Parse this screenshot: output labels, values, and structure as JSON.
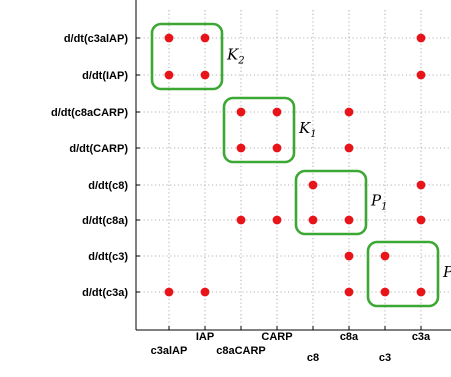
{
  "colors": {
    "point": "#e8141a",
    "group_box": "#3aa832",
    "grid": "#9a9a9a",
    "axis": "#000000"
  },
  "chart_data": {
    "type": "scatter",
    "grid": true,
    "y_categories": [
      "d/dt(c3alAP)",
      "d/dt(IAP)",
      "d/dt(c8aCARP)",
      "d/dt(CARP)",
      "d/dt(c8)",
      "d/dt(c8a)",
      "d/dt(c3)",
      "d/dt(c3a)"
    ],
    "x_categories": [
      "c3alAP",
      "IAP",
      "c8aCARP",
      "CARP",
      "c8",
      "c8a",
      "c3",
      "c3a"
    ],
    "points": [
      {
        "x": "c3alAP",
        "y": "d/dt(c3alAP)"
      },
      {
        "x": "IAP",
        "y": "d/dt(c3alAP)"
      },
      {
        "x": "c3a",
        "y": "d/dt(c3alAP)"
      },
      {
        "x": "c3alAP",
        "y": "d/dt(IAP)"
      },
      {
        "x": "IAP",
        "y": "d/dt(IAP)"
      },
      {
        "x": "c3a",
        "y": "d/dt(IAP)"
      },
      {
        "x": "c8aCARP",
        "y": "d/dt(c8aCARP)"
      },
      {
        "x": "CARP",
        "y": "d/dt(c8aCARP)"
      },
      {
        "x": "c8a",
        "y": "d/dt(c8aCARP)"
      },
      {
        "x": "c8aCARP",
        "y": "d/dt(CARP)"
      },
      {
        "x": "CARP",
        "y": "d/dt(CARP)"
      },
      {
        "x": "c8a",
        "y": "d/dt(CARP)"
      },
      {
        "x": "c8",
        "y": "d/dt(c8)"
      },
      {
        "x": "c3a",
        "y": "d/dt(c8)"
      },
      {
        "x": "c8aCARP",
        "y": "d/dt(c8a)"
      },
      {
        "x": "CARP",
        "y": "d/dt(c8a)"
      },
      {
        "x": "c8",
        "y": "d/dt(c8a)"
      },
      {
        "x": "c8a",
        "y": "d/dt(c8a)"
      },
      {
        "x": "c3a",
        "y": "d/dt(c8a)"
      },
      {
        "x": "c8a",
        "y": "d/dt(c3)"
      },
      {
        "x": "c3",
        "y": "d/dt(c3)"
      },
      {
        "x": "c3alAP",
        "y": "d/dt(c3a)"
      },
      {
        "x": "IAP",
        "y": "d/dt(c3a)"
      },
      {
        "x": "c8a",
        "y": "d/dt(c3a)"
      },
      {
        "x": "c3",
        "y": "d/dt(c3a)"
      },
      {
        "x": "c3a",
        "y": "d/dt(c3a)"
      }
    ],
    "groups": [
      {
        "label": "K",
        "sub": "2",
        "x": [
          "c3alAP",
          "IAP"
        ],
        "y": [
          "d/dt(c3alAP)",
          "d/dt(IAP)"
        ]
      },
      {
        "label": "K",
        "sub": "1",
        "x": [
          "c8aCARP",
          "CARP"
        ],
        "y": [
          "d/dt(c8aCARP)",
          "d/dt(CARP)"
        ]
      },
      {
        "label": "P",
        "sub": "1",
        "x": [
          "c8",
          "c8a"
        ],
        "y": [
          "d/dt(c8)",
          "d/dt(c8a)"
        ]
      },
      {
        "label": "P",
        "sub": "",
        "x": [
          "c3",
          "c3a"
        ],
        "y": [
          "d/dt(c3)",
          "d/dt(c3a)"
        ]
      }
    ]
  }
}
